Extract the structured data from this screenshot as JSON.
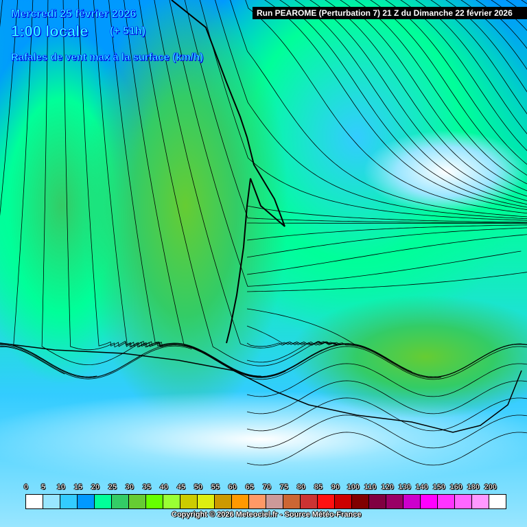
{
  "header": {
    "date": "Mercredi 25 février 2026",
    "time": "1:00 locale",
    "lead": "(+ 51h)",
    "parameter": "Rafales de vent max à la surface (km/h)",
    "run": "Run PEAROME (Perturbation 7) 21 Z du Dimanche 22 février 2026"
  },
  "legend": {
    "labels": [
      "0",
      "5",
      "10",
      "15",
      "20",
      "25",
      "30",
      "35",
      "40",
      "45",
      "50",
      "55",
      "60",
      "65",
      "70",
      "75",
      "80",
      "85",
      "90",
      "100",
      "110",
      "120",
      "130",
      "140",
      "150",
      "160",
      "180",
      "200"
    ],
    "colors": [
      "#ffffff",
      "#99e6ff",
      "#33ccff",
      "#0099ff",
      "#00ff99",
      "#33cc66",
      "#66cc33",
      "#66ff00",
      "#99ff33",
      "#cccc00",
      "#ddee11",
      "#cc9900",
      "#ff9900",
      "#ff9966",
      "#cc9999",
      "#cc6633",
      "#cc3333",
      "#ff1111",
      "#cc0000",
      "#800000",
      "#800040",
      "#990066",
      "#cc00cc",
      "#ff00ff",
      "#ff33ff",
      "#ff66ff",
      "#ff99ff",
      "#ffffff"
    ]
  },
  "footer": {
    "copyright": "Copyright © 2026 Meteociel.fr - Source Météo-France"
  }
}
